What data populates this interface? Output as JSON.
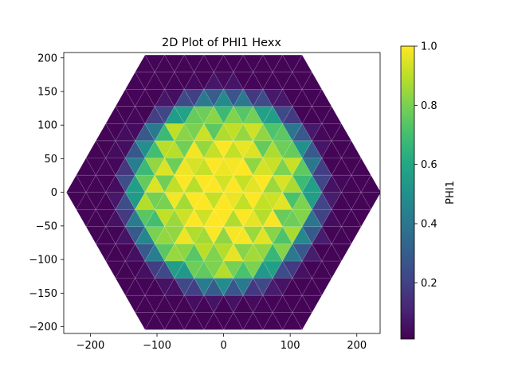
{
  "chart_data": {
    "type": "heatmap",
    "title": "2D Plot of PHI1 Hexx",
    "xlabel": "",
    "ylabel": "",
    "xlim": [
      -240,
      235
    ],
    "ylim": [
      -210,
      208
    ],
    "xticks": [
      -200,
      -100,
      0,
      100,
      200
    ],
    "yticks": [
      -200,
      -150,
      -100,
      -50,
      0,
      50,
      100,
      150,
      200
    ],
    "xtick_labels": [
      "−200",
      "−100",
      "0",
      "100",
      "200"
    ],
    "ytick_labels": [
      "−200",
      "−150",
      "−100",
      "−50",
      "0",
      "50",
      "100",
      "150",
      "200"
    ],
    "colorbar": {
      "label": "PHI1",
      "colormap": "viridis",
      "range": [
        0.01,
        1.0
      ],
      "ticks": [
        0.2,
        0.4,
        0.6,
        0.8,
        1.0
      ],
      "tick_labels": [
        "0.2",
        "0.4",
        "0.6",
        "0.8",
        "1.0"
      ]
    },
    "grid": false,
    "hexagon": {
      "outer_radius": 236,
      "cell_size": 29.5,
      "structure": "triangular cells tiled inside a flat-topped hexagon"
    },
    "intensity_field": {
      "description": "PHI1 approx. 1.0 near center, 0.7-0.9 ring to radius ~110, falling to ~0.02 at the hexagon boundary",
      "core_value": 1.0,
      "ring_value": 0.8,
      "edge_value": 0.02,
      "falloff_radius": 115
    }
  }
}
